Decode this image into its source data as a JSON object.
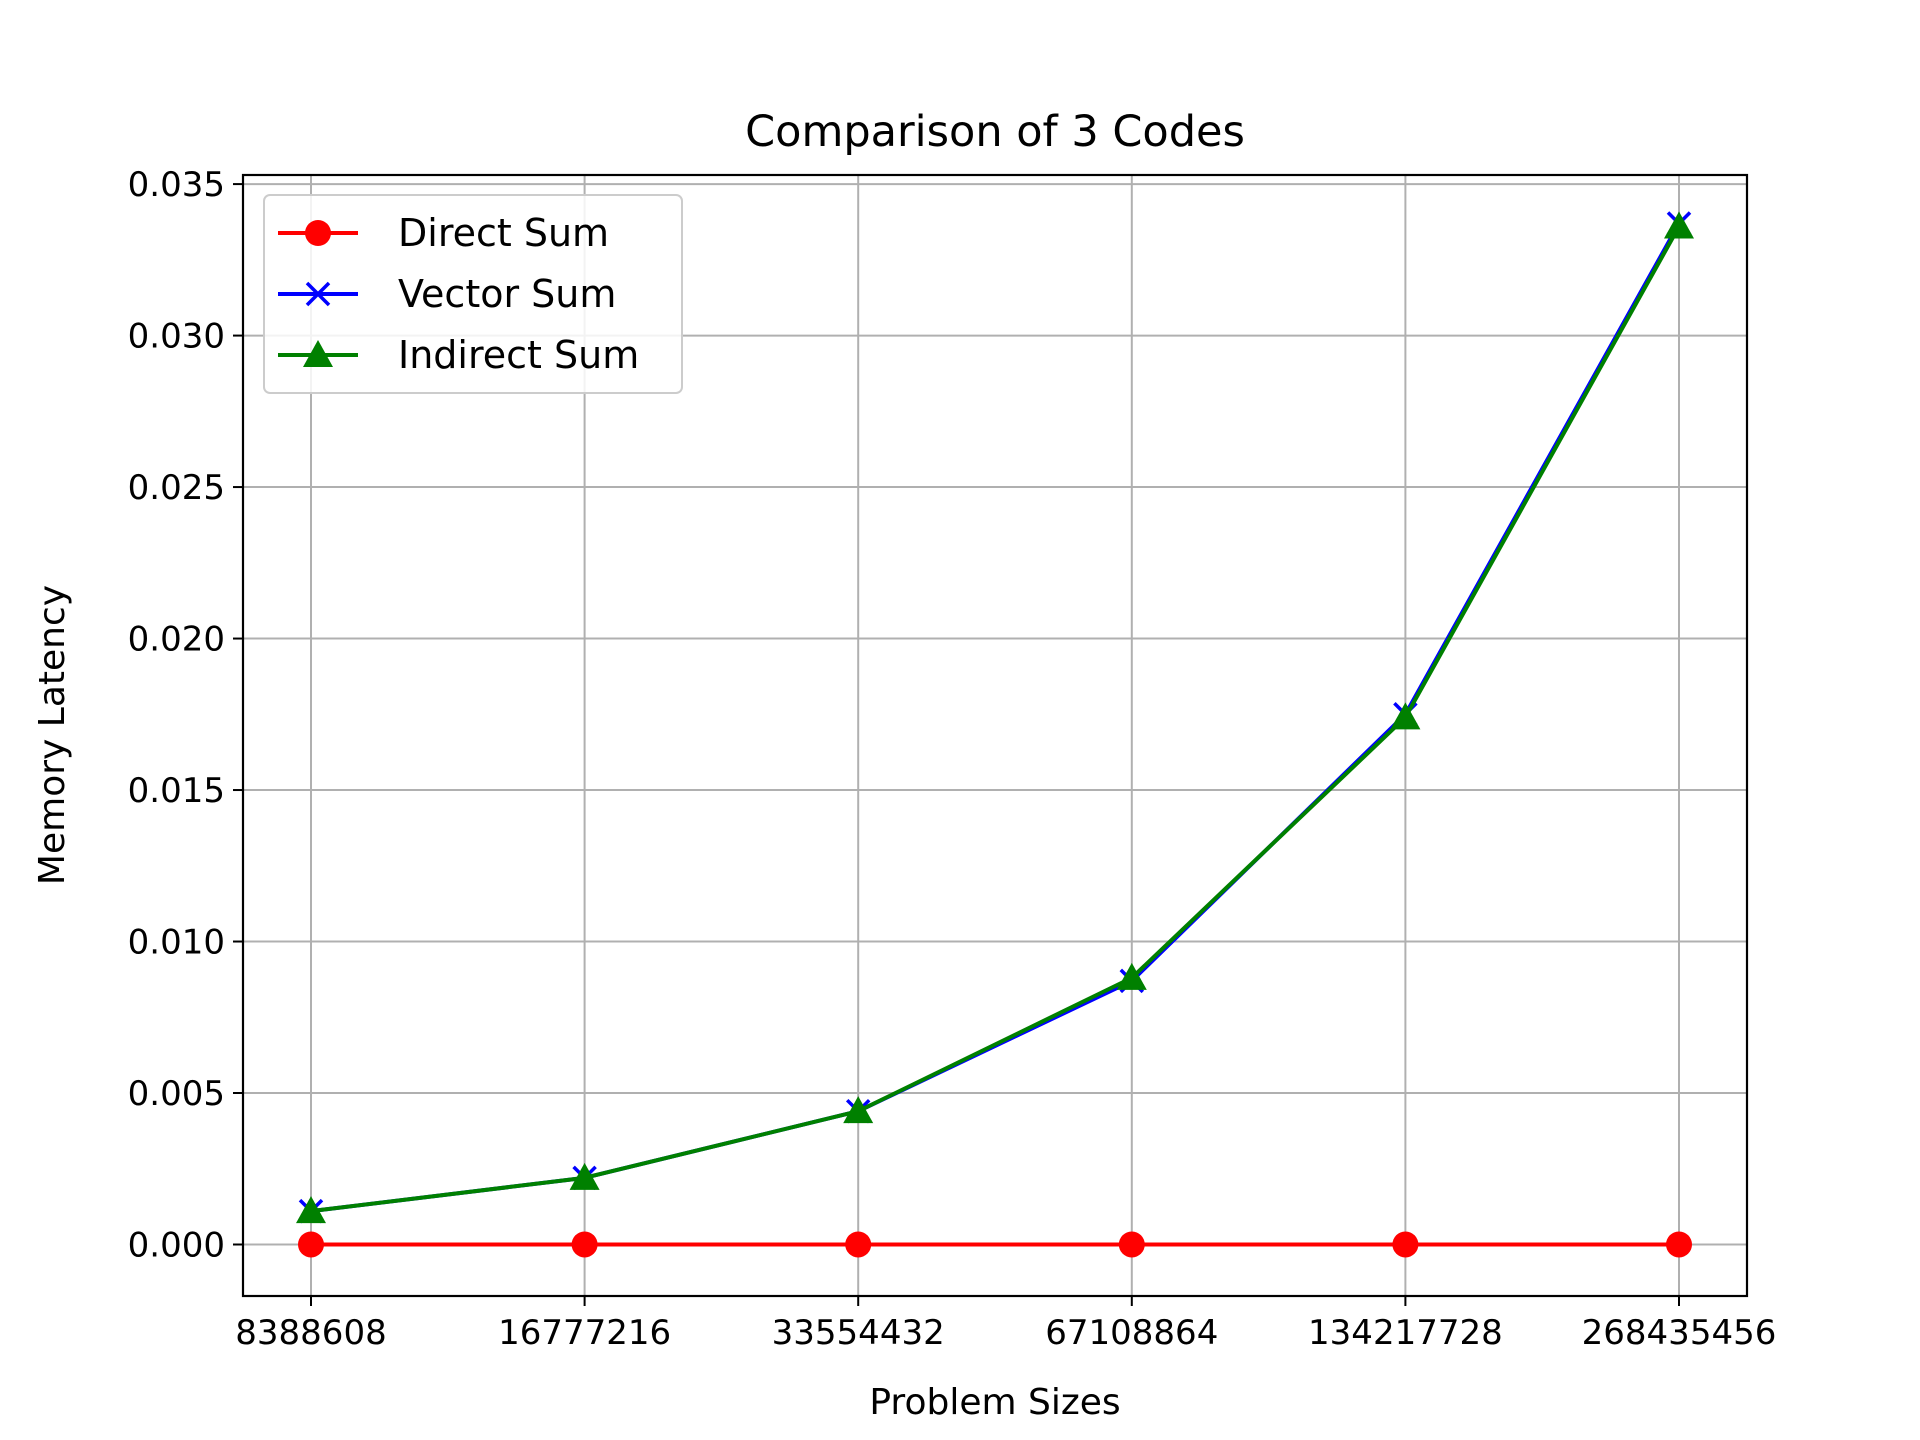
{
  "chart_data": {
    "type": "line",
    "title": "Comparison of 3 Codes",
    "xlabel": "Problem Sizes",
    "ylabel": "Memory Latency",
    "categories": [
      "8388608",
      "16777216",
      "33554432",
      "67108864",
      "134217728",
      "268435456"
    ],
    "ylim": [
      -0.0017,
      0.0353
    ],
    "yticks": [
      0.0,
      0.005,
      0.01,
      0.015,
      0.02,
      0.025,
      0.03,
      0.035
    ],
    "ytick_labels": [
      "0.000",
      "0.005",
      "0.010",
      "0.015",
      "0.020",
      "0.025",
      "0.030",
      "0.035"
    ],
    "grid": true,
    "legend_position": "top-left",
    "series": [
      {
        "name": "Direct Sum",
        "color": "#ff0000",
        "marker": "circle",
        "values": [
          0.0,
          0.0,
          0.0,
          0.0,
          0.0,
          0.0
        ]
      },
      {
        "name": "Vector Sum",
        "color": "#0000ff",
        "marker": "x",
        "values": [
          0.0011,
          0.0022,
          0.0044,
          0.0087,
          0.0175,
          0.0337
        ]
      },
      {
        "name": "Indirect Sum",
        "color": "#008000",
        "marker": "triangle",
        "values": [
          0.0011,
          0.0022,
          0.0044,
          0.0088,
          0.0174,
          0.0336
        ]
      }
    ]
  }
}
